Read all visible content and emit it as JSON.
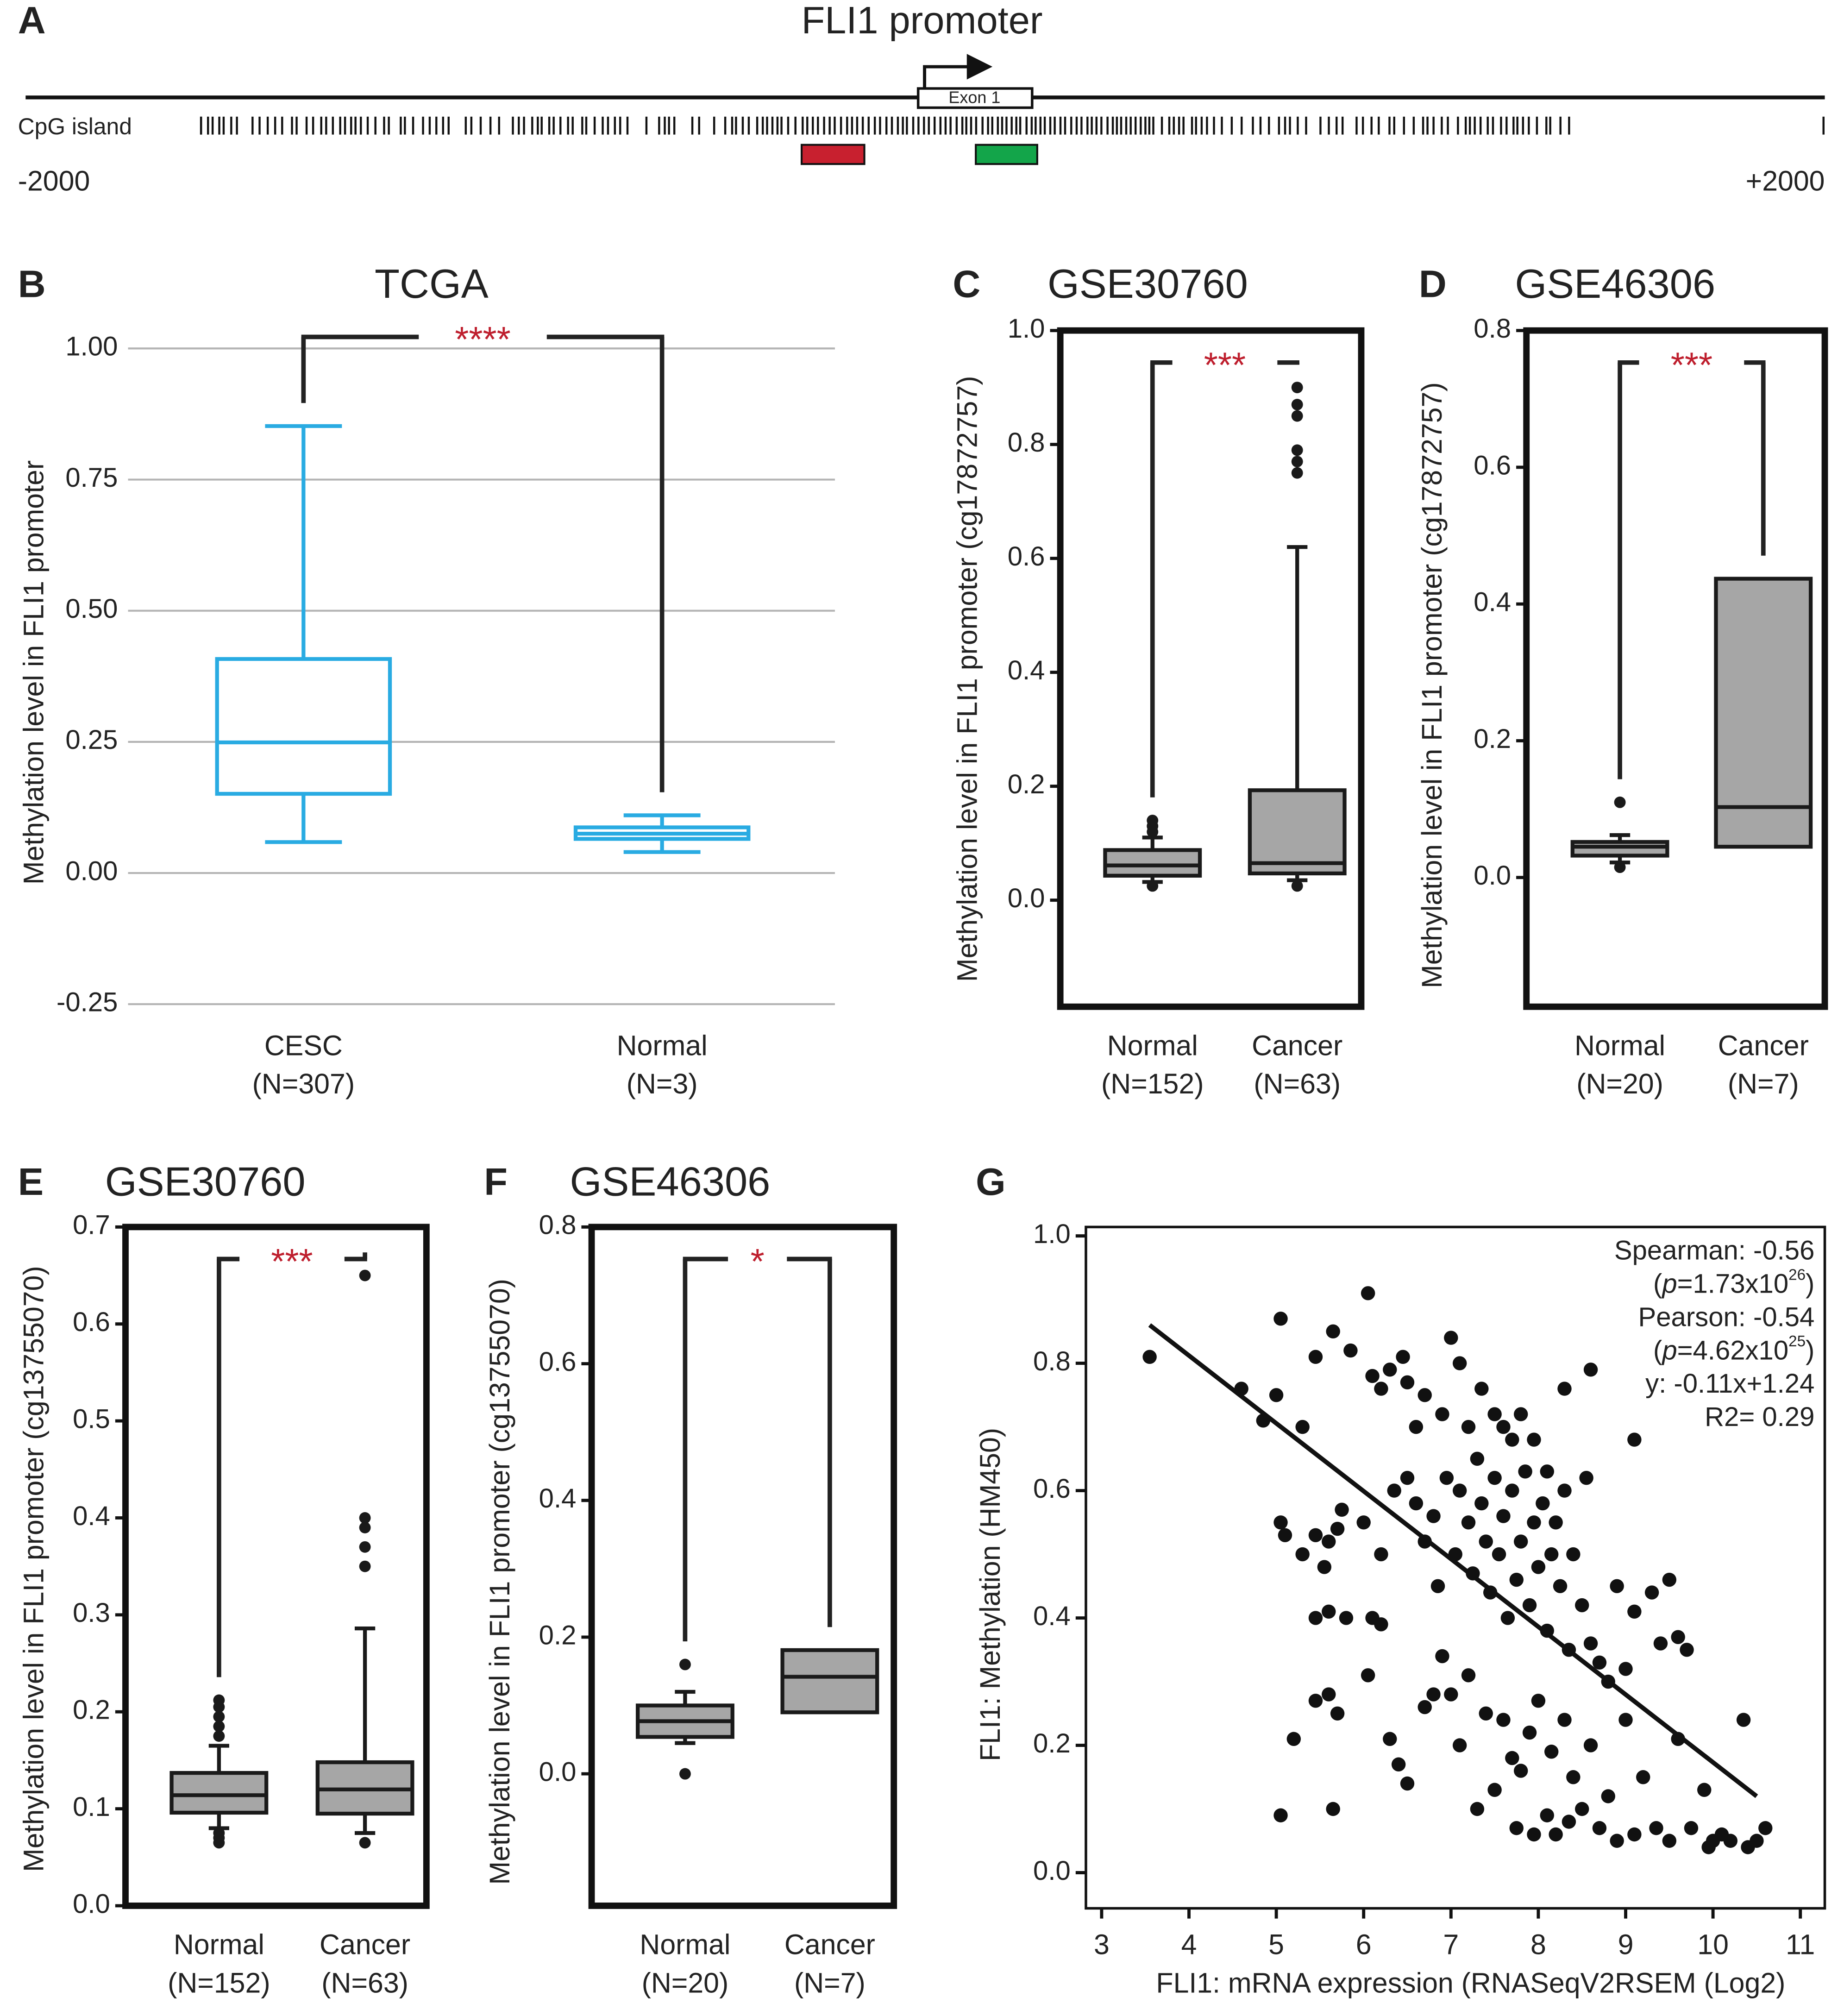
{
  "figure_a": {
    "panel": "A",
    "title": "FLI1 promoter",
    "exon": "Exon 1",
    "track": "CpG island",
    "start": "-2000",
    "end": "+2000"
  },
  "chart_data": [
    {
      "type": "box",
      "panel": "B",
      "title": "TCGA",
      "ylabel": "Methylation level in FLI1 promoter",
      "categories": [
        "CESC",
        "Normal"
      ],
      "counts": [
        "(N=307)",
        "(N=3)"
      ],
      "boxes": [
        {
          "whislo": 0.059,
          "q1": 0.151,
          "med": 0.249,
          "q3": 0.408,
          "whishi": 0.852,
          "fliers": []
        },
        {
          "whislo": 0.04,
          "q1": 0.065,
          "med": 0.075,
          "q3": 0.087,
          "whishi": 0.11,
          "fliers": []
        }
      ],
      "color": "#29abe2",
      "filled": false,
      "grid": true,
      "significance": "****",
      "significance_color": "#be1e2d",
      "ylim": [
        -0.25,
        1.0
      ],
      "yticks": [
        -0.25,
        {
          "value": 0,
          "label": "0.00"
        },
        0.25,
        {
          "value": 0.5,
          "label": "0.50"
        },
        0.75,
        {
          "value": 1,
          "label": "1.00"
        }
      ]
    },
    {
      "type": "box",
      "panel": "C",
      "title": "GSE30760",
      "ylabel": "Methylation level in FLI1 promoter (cg17872757)",
      "categories": [
        "Normal",
        "Cancer"
      ],
      "counts": [
        "(N=152)",
        "(N=63)"
      ],
      "boxes": [
        {
          "whislo": 0.032,
          "q1": 0.043,
          "med": 0.061,
          "q3": 0.088,
          "whishi": 0.11,
          "fliers": [
            0.12,
            0.13,
            0.14,
            0.025
          ]
        },
        {
          "whislo": 0.035,
          "q1": 0.047,
          "med": 0.065,
          "q3": 0.193,
          "whishi": 0.62,
          "fliers": [
            0.75,
            0.77,
            0.79,
            0.85,
            0.87,
            0.9,
            0.025
          ]
        }
      ],
      "color": "#a6a6a6",
      "edge_color": "#1a1a1a",
      "filled": true,
      "grid": false,
      "significance": "***",
      "significance_color": "#be1e2d",
      "ylim": [
        -0.187,
        1.0
      ],
      "yticks": [
        {
          "value": 0,
          "label": "0.0"
        },
        0.2,
        0.4,
        0.6,
        0.8,
        {
          "value": 1,
          "label": "1.0"
        }
      ]
    },
    {
      "type": "box",
      "panel": "D",
      "title": "GSE46306",
      "ylabel": "Methylation level in FLI1 promoter (cg17872757)",
      "categories": [
        "Normal",
        "Cancer"
      ],
      "counts": [
        "(N=20)",
        "(N=7)"
      ],
      "boxes": [
        {
          "whislo": 0.022,
          "q1": 0.032,
          "med": 0.045,
          "q3": 0.052,
          "whishi": 0.062,
          "fliers": [
            0.11,
            0.015
          ]
        },
        {
          "whislo": 0.045,
          "q1": 0.045,
          "med": 0.103,
          "q3": 0.437,
          "whishi": 0.437,
          "fliers": []
        }
      ],
      "color": "#a6a6a6",
      "edge_color": "#1a1a1a",
      "filled": true,
      "grid": false,
      "significance": "***",
      "significance_color": "#be1e2d",
      "ylim": [
        -0.189,
        0.8
      ],
      "yticks": [
        {
          "value": 0,
          "label": "0.0"
        },
        0.2,
        0.4,
        0.6,
        0.8
      ]
    },
    {
      "type": "box",
      "panel": "E",
      "title": "GSE30760",
      "ylabel": "Methylation level in FLI1 promoter (cg13755070)",
      "categories": [
        "Normal",
        "Cancer"
      ],
      "counts": [
        "(N=152)",
        "(N=63)"
      ],
      "boxes": [
        {
          "whislo": 0.08,
          "q1": 0.096,
          "med": 0.114,
          "q3": 0.137,
          "whishi": 0.165,
          "fliers": [
            0.175,
            0.185,
            0.195,
            0.205,
            0.212,
            0.075,
            0.07,
            0.065
          ]
        },
        {
          "whislo": 0.075,
          "q1": 0.095,
          "med": 0.12,
          "q3": 0.148,
          "whishi": 0.286,
          "fliers": [
            0.35,
            0.37,
            0.39,
            0.4,
            0.65,
            0.065
          ]
        }
      ],
      "color": "#a6a6a6",
      "edge_color": "#1a1a1a",
      "filled": true,
      "grid": false,
      "significance": "***",
      "significance_color": "#be1e2d",
      "ylim": [
        0,
        0.7
      ],
      "yticks": [
        {
          "value": 0,
          "label": "0.0"
        },
        0.1,
        0.2,
        0.3,
        0.4,
        0.5,
        0.6,
        0.7
      ]
    },
    {
      "type": "box",
      "panel": "F",
      "title": "GSE46306",
      "ylabel": "Methylation level in FLI1 promoter (cg13755070)",
      "categories": [
        "Normal",
        "Cancer"
      ],
      "counts": [
        "(N=20)",
        "(N=7)"
      ],
      "boxes": [
        {
          "whislo": 0.045,
          "q1": 0.054,
          "med": 0.077,
          "q3": 0.1,
          "whishi": 0.12,
          "fliers": [
            0.16,
            0.0
          ]
        },
        {
          "whislo": 0.09,
          "q1": 0.09,
          "med": 0.142,
          "q3": 0.181,
          "whishi": 0.181,
          "fliers": []
        }
      ],
      "color": "#a6a6a6",
      "edge_color": "#1a1a1a",
      "filled": true,
      "grid": false,
      "significance": "*",
      "significance_color": "#be1e2d",
      "ylim": [
        -0.193,
        0.8
      ],
      "yticks": [
        {
          "value": 0,
          "label": "0.0"
        },
        0.2,
        0.4,
        0.6,
        0.8
      ]
    },
    {
      "type": "scatter",
      "panel": "G",
      "xlabel": "FLI1: mRNA expression (RNASeqV2RSEM (Log2)",
      "ylabel": "FLI1: Methylation (HM450)",
      "color": "#111111",
      "stats": [
        [
          {
            "text": "Spearman: -0.56"
          }
        ],
        [
          {
            "text": "("
          },
          {
            "text": "p",
            "italic": true
          },
          {
            "text": "=1.73x10"
          },
          {
            "text": "26",
            "sup": true
          },
          {
            "text": ")"
          }
        ],
        [
          {
            "text": "Pearson: -0.54"
          }
        ],
        [
          {
            "text": "("
          },
          {
            "text": "p",
            "italic": true
          },
          {
            "text": "=4.62x10"
          },
          {
            "text": "25",
            "sup": true
          },
          {
            "text": ")"
          }
        ],
        [
          {
            "text": "y: -0.11x+1.24"
          }
        ],
        [
          {
            "text": "R2= 0.29"
          }
        ]
      ],
      "fit_line": {
        "x": [
          3.55,
          10.5
        ],
        "y": [
          0.86,
          0.12
        ]
      },
      "xlim": [
        2.82,
        11.28
      ],
      "xticks": [
        3,
        4,
        5,
        6,
        7,
        8,
        9,
        10,
        11
      ],
      "ylim": [
        -0.056,
        1.014
      ],
      "yticks": [
        {
          "value": 0,
          "label": "0.0"
        },
        0.2,
        0.4,
        0.6,
        0.8,
        {
          "value": 1,
          "label": "1.0"
        }
      ],
      "points": [
        [
          3.55,
          0.81
        ],
        [
          4.6,
          0.76
        ],
        [
          4.85,
          0.71
        ],
        [
          5.0,
          0.75
        ],
        [
          5.05,
          0.87
        ],
        [
          5.3,
          0.7
        ],
        [
          5.45,
          0.81
        ],
        [
          5.65,
          0.85
        ],
        [
          5.85,
          0.82
        ],
        [
          6.05,
          0.91
        ],
        [
          6.1,
          0.78
        ],
        [
          6.2,
          0.76
        ],
        [
          6.3,
          0.79
        ],
        [
          6.45,
          0.81
        ],
        [
          6.5,
          0.77
        ],
        [
          6.6,
          0.7
        ],
        [
          6.7,
          0.75
        ],
        [
          6.9,
          0.72
        ],
        [
          7.0,
          0.84
        ],
        [
          7.1,
          0.8
        ],
        [
          7.2,
          0.7
        ],
        [
          7.35,
          0.76
        ],
        [
          7.5,
          0.72
        ],
        [
          7.6,
          0.7
        ],
        [
          7.7,
          0.68
        ],
        [
          7.8,
          0.72
        ],
        [
          7.95,
          0.68
        ],
        [
          8.1,
          0.63
        ],
        [
          8.3,
          0.76
        ],
        [
          8.6,
          0.79
        ],
        [
          9.1,
          0.68
        ],
        [
          5.05,
          0.55
        ],
        [
          5.1,
          0.53
        ],
        [
          5.3,
          0.5
        ],
        [
          5.45,
          0.53
        ],
        [
          5.6,
          0.52
        ],
        [
          5.7,
          0.54
        ],
        [
          5.75,
          0.57
        ],
        [
          5.55,
          0.48
        ],
        [
          5.45,
          0.4
        ],
        [
          5.6,
          0.41
        ],
        [
          5.8,
          0.4
        ],
        [
          6.1,
          0.4
        ],
        [
          6.2,
          0.39
        ],
        [
          6.0,
          0.55
        ],
        [
          6.2,
          0.5
        ],
        [
          6.35,
          0.6
        ],
        [
          6.5,
          0.62
        ],
        [
          6.6,
          0.58
        ],
        [
          6.7,
          0.52
        ],
        [
          6.8,
          0.56
        ],
        [
          6.85,
          0.45
        ],
        [
          6.95,
          0.62
        ],
        [
          7.05,
          0.5
        ],
        [
          7.1,
          0.6
        ],
        [
          7.2,
          0.55
        ],
        [
          7.25,
          0.47
        ],
        [
          7.3,
          0.65
        ],
        [
          7.35,
          0.58
        ],
        [
          7.4,
          0.52
        ],
        [
          7.45,
          0.44
        ],
        [
          7.5,
          0.62
        ],
        [
          7.55,
          0.5
        ],
        [
          7.6,
          0.56
        ],
        [
          7.65,
          0.4
        ],
        [
          7.7,
          0.6
        ],
        [
          7.75,
          0.46
        ],
        [
          7.8,
          0.52
        ],
        [
          7.85,
          0.63
        ],
        [
          7.9,
          0.42
        ],
        [
          7.95,
          0.55
        ],
        [
          8.0,
          0.48
        ],
        [
          8.05,
          0.58
        ],
        [
          8.1,
          0.38
        ],
        [
          8.15,
          0.5
        ],
        [
          8.2,
          0.55
        ],
        [
          8.25,
          0.45
        ],
        [
          8.3,
          0.6
        ],
        [
          8.35,
          0.35
        ],
        [
          8.4,
          0.5
        ],
        [
          8.5,
          0.42
        ],
        [
          8.55,
          0.62
        ],
        [
          8.6,
          0.36
        ],
        [
          8.7,
          0.33
        ],
        [
          8.8,
          0.3
        ],
        [
          8.9,
          0.45
        ],
        [
          9.0,
          0.32
        ],
        [
          9.1,
          0.41
        ],
        [
          9.3,
          0.44
        ],
        [
          9.4,
          0.36
        ],
        [
          9.5,
          0.46
        ],
        [
          9.6,
          0.37
        ],
        [
          9.7,
          0.35
        ],
        [
          5.05,
          0.09
        ],
        [
          5.2,
          0.21
        ],
        [
          5.45,
          0.27
        ],
        [
          5.6,
          0.28
        ],
        [
          5.65,
          0.1
        ],
        [
          5.7,
          0.25
        ],
        [
          6.05,
          0.31
        ],
        [
          6.3,
          0.21
        ],
        [
          6.4,
          0.17
        ],
        [
          6.5,
          0.14
        ],
        [
          6.7,
          0.26
        ],
        [
          6.8,
          0.28
        ],
        [
          6.9,
          0.34
        ],
        [
          7.0,
          0.28
        ],
        [
          7.1,
          0.2
        ],
        [
          7.2,
          0.31
        ],
        [
          7.3,
          0.1
        ],
        [
          7.4,
          0.25
        ],
        [
          7.5,
          0.13
        ],
        [
          7.6,
          0.24
        ],
        [
          7.7,
          0.18
        ],
        [
          7.75,
          0.07
        ],
        [
          7.8,
          0.16
        ],
        [
          7.9,
          0.22
        ],
        [
          7.95,
          0.06
        ],
        [
          8.0,
          0.27
        ],
        [
          8.1,
          0.09
        ],
        [
          8.15,
          0.19
        ],
        [
          8.2,
          0.06
        ],
        [
          8.3,
          0.24
        ],
        [
          8.35,
          0.08
        ],
        [
          8.4,
          0.15
        ],
        [
          8.5,
          0.1
        ],
        [
          8.6,
          0.2
        ],
        [
          8.7,
          0.07
        ],
        [
          8.8,
          0.12
        ],
        [
          8.9,
          0.05
        ],
        [
          9.0,
          0.24
        ],
        [
          9.1,
          0.06
        ],
        [
          9.2,
          0.15
        ],
        [
          9.35,
          0.07
        ],
        [
          9.5,
          0.05
        ],
        [
          9.6,
          0.21
        ],
        [
          9.75,
          0.07
        ],
        [
          9.9,
          0.13
        ],
        [
          10.0,
          0.05
        ],
        [
          10.1,
          0.06
        ],
        [
          10.35,
          0.24
        ],
        [
          10.4,
          0.04
        ],
        [
          10.5,
          0.05
        ],
        [
          10.6,
          0.07
        ],
        [
          9.95,
          0.04
        ],
        [
          10.2,
          0.05
        ]
      ]
    }
  ]
}
